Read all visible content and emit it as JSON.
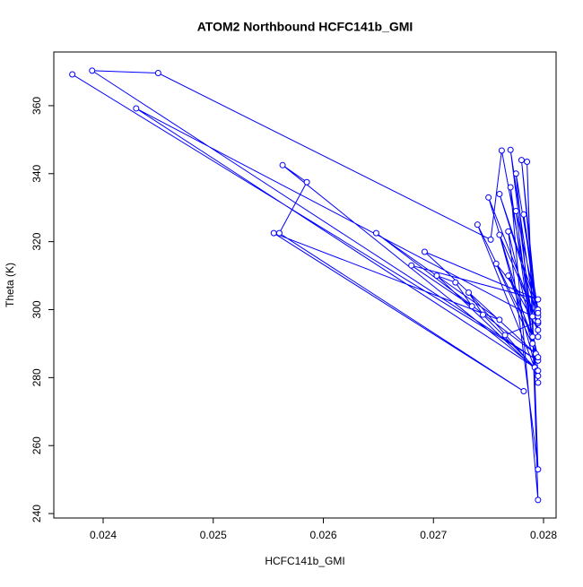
{
  "chart_data": {
    "type": "line",
    "title": "ATOM2 Northbound HCFC141b_GMI",
    "xlabel": "HCFC141b_GMI",
    "ylabel": "Theta (K)",
    "x": [
      0.02372,
      0.02795,
      0.0239,
      0.0245,
      0.02752,
      0.02762,
      0.0279,
      0.0243,
      0.02792,
      0.02563,
      0.02585,
      0.0256,
      0.02782,
      0.02555,
      0.0276,
      0.02648,
      0.02793,
      0.02692,
      0.02795,
      0.0268,
      0.02735,
      0.0272,
      0.02703,
      0.02794,
      0.02732,
      0.02745,
      0.02795,
      0.0277,
      0.02795,
      0.0278,
      0.02795,
      0.0275,
      0.0279,
      0.02775,
      0.02795,
      0.0276,
      0.02795,
      0.02757,
      0.02795,
      0.02768,
      0.02795,
      0.02785,
      0.02795,
      0.0277,
      0.02795,
      0.02775,
      0.02795,
      0.02782,
      0.02795,
      0.02768,
      0.0279,
      0.0274,
      0.02795,
      0.0276,
      0.02795,
      0.02765
    ],
    "series": [
      {
        "color": "#0000ff",
        "values": [
          369.2,
          285,
          370.3,
          369.6,
          320.6,
          346.8,
          298,
          359.2,
          283,
          342.5,
          337.5,
          322.5,
          276,
          322.5,
          297,
          322.5,
          287,
          317,
          303,
          313,
          301,
          308,
          310,
          282,
          305,
          298.5,
          282,
          347,
          292,
          344,
          296,
          333,
          290,
          340,
          300,
          334,
          298,
          313.5,
          286,
          323,
          253,
          343.5,
          244,
          336,
          278.5,
          329,
          299,
          328,
          294,
          310,
          292,
          325,
          280.5,
          322,
          296.5,
          292.5
        ]
      }
    ],
    "xlim": [
      0.023552,
      0.028114
    ],
    "ylim": [
      238.7,
      375.8
    ],
    "xticks": [
      0.024,
      0.025,
      0.026,
      0.027,
      0.028
    ],
    "yticks": [
      240,
      260,
      280,
      300,
      320,
      340,
      360
    ]
  }
}
